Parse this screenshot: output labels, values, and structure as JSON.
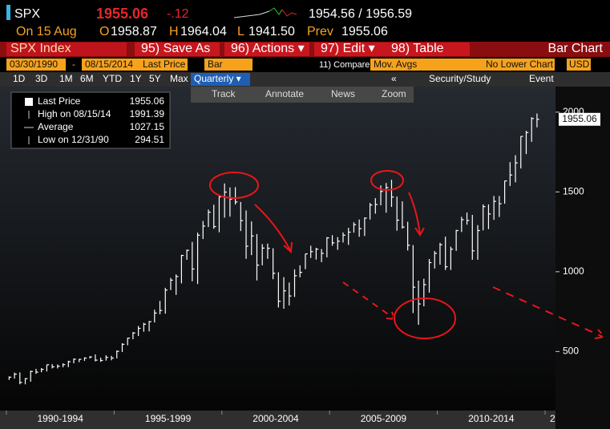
{
  "header": {
    "ticker": "SPX",
    "price": "1955.06",
    "change": "-.12",
    "bid_ask": "1954.56 / 1956.59",
    "date": "On 15 Aug",
    "open_label": "O",
    "open": "1958.87",
    "high_label": "H",
    "high": "1964.04",
    "low_label": "L",
    "low": "1941.50",
    "prev_label": "Prev",
    "prev": "1955.06"
  },
  "menu": {
    "security": "SPX Index",
    "buttons": [
      "95) Save As",
      "96) Actions ▾",
      "97) Edit ▾",
      "98) Table"
    ],
    "chart_type": "Bar Chart"
  },
  "settings": {
    "start": "03/30/1990",
    "end": "08/15/2014",
    "field": "Last Price",
    "style": "Bar",
    "compare": "11) Compare",
    "mov_avgs": "Mov. Avgs",
    "lower_chart": "No Lower Chart",
    "currency": "USD"
  },
  "ranges": [
    "1D",
    "3D",
    "1M",
    "6M",
    "YTD",
    "1Y",
    "5Y",
    "Max"
  ],
  "frequency": "Quarterly ▾",
  "security_study": "Security/Study",
  "event": "Event",
  "tools": [
    "Track",
    "Annotate",
    "News",
    "Zoom"
  ],
  "legend": [
    {
      "label": "Last Price",
      "value": "1955.06"
    },
    {
      "label": "High on 08/15/14",
      "value": "1991.39"
    },
    {
      "label": "Average",
      "value": "1027.15"
    },
    {
      "label": "Low on 12/31/90",
      "value": "294.51"
    }
  ],
  "chart_data": {
    "type": "ohlc",
    "color": "#ffffff",
    "x_labels": [
      "1990-1994",
      "1995-1999",
      "2000-2004",
      "2005-2009",
      "2010-2014",
      "2"
    ],
    "high": [
      344,
      368,
      369,
      333,
      380,
      391,
      396,
      418,
      421,
      419,
      426,
      442,
      456,
      454,
      463,
      471,
      482,
      462,
      476,
      473,
      507,
      552,
      586,
      622,
      660,
      680,
      691,
      762,
      817,
      899,
      961,
      983,
      1106,
      1139,
      1187,
      1245,
      1318,
      1390,
      1420,
      1475,
      1553,
      1528,
      1530,
      1437,
      1384,
      1315,
      1236,
      1173,
      1176,
      1147,
      997,
      966,
      932,
      1015,
      1040,
      1112,
      1163,
      1150,
      1142,
      1217,
      1229,
      1217,
      1246,
      1275,
      1310,
      1327,
      1340,
      1431,
      1461,
      1541,
      1556,
      1576,
      1471,
      1441,
      1313,
      1167,
      944,
      956,
      1080,
      1130,
      1181,
      1220,
      1157,
      1262,
      1344,
      1371,
      1356,
      1292,
      1422,
      1422,
      1475,
      1474,
      1570,
      1687,
      1730,
      1849,
      1883,
      1968,
      1991.39
    ],
    "low": [
      322,
      330,
      295,
      294.51,
      311,
      360,
      370,
      375,
      394,
      394,
      401,
      402,
      426,
      433,
      441,
      456,
      438,
      435,
      443,
      445,
      457,
      497,
      539,
      577,
      597,
      624,
      626,
      682,
      733,
      737,
      885,
      855,
      927,
      1075,
      940,
      923,
      1205,
      1280,
      1269,
      1247,
      1339,
      1345,
      1421,
      1255,
      1081,
      1104,
      945,
      1040,
      1081,
      953,
      776,
      768,
      789,
      842,
      965,
      1016,
      1086,
      1076,
      1060,
      1090,
      1163,
      1137,
      1183,
      1168,
      1245,
      1219,
      1224,
      1327,
      1364,
      1416,
      1370,
      1406,
      1257,
      1270,
      1133,
      741,
      667,
      783,
      869,
      1020,
      1044,
      1011,
      1011,
      1131,
      1249,
      1295,
      1075,
      1075,
      1259,
      1267,
      1325,
      1343,
      1426,
      1537,
      1560,
      1647,
      1737,
      1814,
      1905
    ],
    "close": [
      339,
      358,
      306,
      330,
      375,
      371,
      388,
      417,
      404,
      408,
      418,
      436,
      452,
      451,
      459,
      466,
      446,
      444,
      463,
      459,
      501,
      545,
      584,
      616,
      645,
      671,
      687,
      741,
      757,
      885,
      947,
      970,
      1102,
      1134,
      1017,
      1229,
      1286,
      1373,
      1283,
      1469,
      1499,
      1455,
      1437,
      1320,
      1160,
      1224,
      1041,
      1148,
      1147,
      990,
      815,
      880,
      848,
      975,
      996,
      1112,
      1126,
      1141,
      1115,
      1212,
      1181,
      1191,
      1229,
      1248,
      1295,
      1270,
      1336,
      1418,
      1421,
      1503,
      1527,
      1468,
      1323,
      1280,
      1166,
      903,
      798,
      919,
      1057,
      1115,
      1169,
      1031,
      1141,
      1258,
      1326,
      1321,
      1131,
      1258,
      1408,
      1362,
      1441,
      1426,
      1569,
      1606,
      1682,
      1848,
      1872,
      1960,
      1955.06
    ],
    "ylim": [
      130,
      2160
    ],
    "yticks": [
      500,
      1000,
      1500,
      2000
    ]
  }
}
